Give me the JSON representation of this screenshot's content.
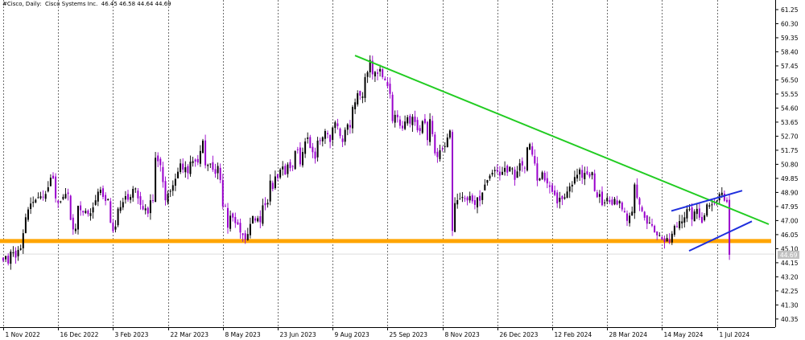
{
  "header": {
    "instrument": "#Cisco, Daily:  Cisco Systems Inc.",
    "ohlc": "46.45 46.58 44.64 44.69"
  },
  "chart_data": {
    "type": "candlestick",
    "title": "#Cisco, Daily:  Cisco Systems Inc.",
    "timeframe": "Daily",
    "ohlc_last": {
      "open": 46.45,
      "high": 46.58,
      "low": 44.64,
      "close": 44.69
    },
    "last_price_label": "44.69",
    "y_ticks": [
      "61.25",
      "60.30",
      "59.35",
      "58.40",
      "57.45",
      "56.50",
      "55.55",
      "54.60",
      "53.65",
      "52.70",
      "51.75",
      "50.80",
      "49.85",
      "48.90",
      "47.95",
      "47.00",
      "46.05",
      "45.10",
      "44.15",
      "43.20",
      "42.25",
      "41.30",
      "40.35"
    ],
    "ylim": [
      39.8,
      61.9
    ],
    "x_ticks": [
      "1 Nov 2022",
      "16 Dec 2022",
      "3 Feb 2023",
      "22 Mar 2023",
      "8 May 2023",
      "23 Jun 2023",
      "9 Aug 2023",
      "25 Sep 2023",
      "8 Nov 2023",
      "26 Dec 2023",
      "12 Feb 2024",
      "28 Mar 2024",
      "14 May 2024",
      "1 Jul 2024"
    ],
    "grid": "vertical dashed at date ticks",
    "colors": {
      "bull": "#000000",
      "bear": "#9900cc",
      "support": "#ffa500",
      "resistance": "#22cc22",
      "channel": "#1f2fdd",
      "grid": "#333333"
    },
    "closes": [
      44.3,
      44.6,
      44.1,
      44.9,
      44.85,
      44.5,
      45.02,
      45.12,
      46.15,
      47.22,
      47.75,
      48.15,
      48.26,
      48.4,
      48.57,
      48.64,
      48.56,
      48.8,
      49.25,
      49.9,
      49.85,
      48.5,
      48.2,
      48.3,
      48.6,
      48.8,
      48.8,
      47.05,
      46.4,
      46.45,
      48.0,
      47.7,
      47.55,
      47.65,
      47.44,
      47.5,
      47.9,
      48.37,
      48.95,
      49.08,
      48.6,
      48.33,
      48.45,
      46.85,
      46.28,
      46.6,
      47.8,
      47.91,
      48.25,
      48.65,
      48.41,
      48.6,
      49.14,
      49.17,
      48.5,
      48.06,
      47.75,
      47.82,
      47.47,
      48.37,
      48.34,
      51.24,
      51.01,
      50.74,
      49.6,
      48.37,
      48.8,
      49.0,
      49.39,
      49.82,
      50.3,
      50.86,
      50.44,
      50.6,
      50.2,
      50.98,
      51.01,
      50.99,
      50.92,
      51.7,
      52.4,
      50.73,
      50.76,
      50.85,
      50.43,
      50.16,
      50.69,
      49.74,
      47.96,
      47.96,
      46.52,
      47.33,
      47.2,
      46.83,
      46.73,
      46.19,
      46.02,
      45.7,
      46.09,
      46.77,
      47.31,
      47.0,
      47.16,
      46.89,
      48.03,
      48.04,
      48.2,
      49.7,
      49.13,
      49.98,
      49.88,
      50.44,
      50.65,
      50.1,
      50.79,
      50.54,
      50.65,
      51.7,
      51.79,
      50.8,
      51.63,
      52.34,
      52.61,
      51.9,
      51.62,
      51.18,
      52.4,
      52.42,
      52.63,
      53.05,
      52.83,
      52.31,
      53.29,
      53.64,
      53.38,
      52.71,
      52.31,
      53.13,
      53.5,
      53.29,
      54.67,
      54.99,
      55.6,
      55.44,
      55.38,
      56.69,
      57.02,
      57.85,
      56.88,
      57.04,
      56.92,
      57.24,
      56.69,
      56.47,
      56.08,
      55.56,
      53.72,
      54.14,
      53.98,
      53.4,
      53.23,
      53.69,
      53.98,
      53.55,
      54.01,
      53.66,
      53.1,
      53.05,
      53.71,
      53.58,
      52.44,
      53.85,
      52.84,
      51.54,
      51.29,
      51.75,
      51.83,
      52.03,
      52.61,
      53.08,
      46.31,
      48.18,
      48.38,
      48.47,
      48.6,
      48.47,
      48.36,
      48.66,
      48.3,
      48.06,
      48.57,
      48.34,
      48.89,
      49.43,
      49.74,
      50.03,
      50.23,
      50.41,
      50.34,
      50.04,
      50.29,
      50.56,
      50.24,
      50.63,
      50.52,
      49.75,
      50.32,
      50.87,
      50.72,
      50.52,
      51.94,
      52.17,
      51.45,
      50.85,
      49.7,
      49.84,
      50.26,
      49.71,
      49.51,
      49.28,
      48.94,
      48.73,
      48.16,
      48.54,
      48.45,
      48.57,
      48.96,
      49.31,
      49.42,
      49.94,
      50.09,
      50.45,
      49.89,
      50.22,
      50.14,
      49.97,
      50.27,
      48.99,
      48.58,
      48.79,
      48.04,
      48.22,
      48.53,
      48.25,
      48.07,
      48.47,
      48.08,
      48.32,
      47.75,
      47.56,
      46.98,
      47.33,
      47.6,
      49.44,
      48.54,
      48.08,
      47.64,
      47.19,
      46.79,
      46.86,
      46.66,
      46.2,
      46.0,
      46.01,
      45.71,
      45.55,
      45.82,
      45.51,
      46.11,
      46.64,
      46.61,
      46.96,
      46.94,
      47.22,
      47.77,
      47.79,
      47.07,
      47.61,
      47.79,
      47.2,
      46.86,
      47.35,
      48.09,
      48.03,
      48.09,
      48.14,
      48.34,
      48.79,
      48.88,
      48.34,
      48.27,
      44.69
    ]
  }
}
